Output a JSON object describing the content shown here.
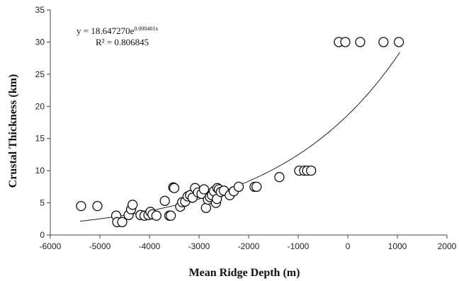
{
  "chart_data": {
    "type": "scatter",
    "xlabel": "Mean Ridge Depth (m)",
    "ylabel": "Crustal Thickness (km)",
    "xlim": [
      -6000,
      2000
    ],
    "ylim": [
      0,
      35
    ],
    "xticks": [
      -6000,
      -5000,
      -4000,
      -3000,
      -2000,
      -1000,
      0,
      1000,
      2000
    ],
    "yticks": [
      0,
      5,
      10,
      15,
      20,
      25,
      30,
      35
    ],
    "grid": false,
    "annotation": {
      "equation_prefix": "y = 18.647270e",
      "equation_exponent": "0.000401x",
      "r_squared": "R² = 0.806845"
    },
    "trendline": {
      "type": "exponential",
      "a": 18.64727,
      "b": 0.000401,
      "x_range": [
        -5400,
        1050
      ]
    },
    "points": [
      [
        -5380,
        4.5
      ],
      [
        -5050,
        4.5
      ],
      [
        -4670,
        3.0
      ],
      [
        -4650,
        2.0
      ],
      [
        -4550,
        2.0
      ],
      [
        -4420,
        3.1
      ],
      [
        -4370,
        4.0
      ],
      [
        -4340,
        4.7
      ],
      [
        -4180,
        3.1
      ],
      [
        -4100,
        3.0
      ],
      [
        -4020,
        3.1
      ],
      [
        -3980,
        3.6
      ],
      [
        -3940,
        3.2
      ],
      [
        -3860,
        3.0
      ],
      [
        -3690,
        5.3
      ],
      [
        -3600,
        3.0
      ],
      [
        -3570,
        3.0
      ],
      [
        -3520,
        7.4
      ],
      [
        -3500,
        7.3
      ],
      [
        -3380,
        4.4
      ],
      [
        -3340,
        5.1
      ],
      [
        -3280,
        5.2
      ],
      [
        -3230,
        6.0
      ],
      [
        -3180,
        6.2
      ],
      [
        -3130,
        5.8
      ],
      [
        -3080,
        7.3
      ],
      [
        -3020,
        6.6
      ],
      [
        -2950,
        6.4
      ],
      [
        -2900,
        7.1
      ],
      [
        -2860,
        4.2
      ],
      [
        -2820,
        5.5
      ],
      [
        -2780,
        5.9
      ],
      [
        -2740,
        6.2
      ],
      [
        -2700,
        6.8
      ],
      [
        -2660,
        5.0
      ],
      [
        -2640,
        5.6
      ],
      [
        -2630,
        7.3
      ],
      [
        -2600,
        7.1
      ],
      [
        -2560,
        6.7
      ],
      [
        -2500,
        6.9
      ],
      [
        -2380,
        6.2
      ],
      [
        -2300,
        6.8
      ],
      [
        -2200,
        7.5
      ],
      [
        -1880,
        7.5
      ],
      [
        -1840,
        7.5
      ],
      [
        -1380,
        9.0
      ],
      [
        -980,
        10.0
      ],
      [
        -880,
        10.0
      ],
      [
        -820,
        10.0
      ],
      [
        -740,
        10.0
      ],
      [
        -180,
        30.0
      ],
      [
        -50,
        30.0
      ],
      [
        250,
        30.0
      ],
      [
        720,
        30.0
      ],
      [
        1030,
        30.0
      ]
    ]
  }
}
